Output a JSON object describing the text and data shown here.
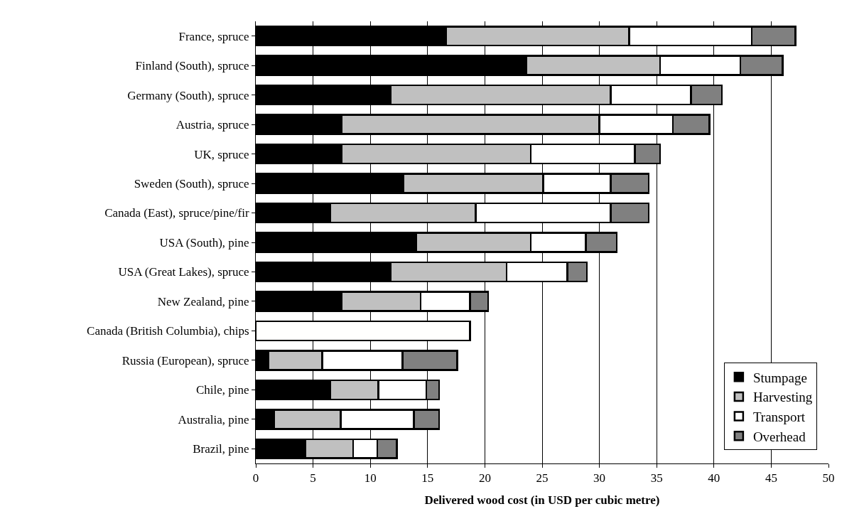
{
  "chart_data": {
    "type": "bar",
    "orientation": "horizontal",
    "stacked": true,
    "xlabel": "Delivered wood cost (in USD per cubic metre)",
    "categories": [
      "France, spruce",
      "Finland (South), spruce",
      "Germany (South), spruce",
      "Austria, spruce",
      "UK, spruce",
      "Sweden (South), spruce",
      "Canada (East), spruce/pine/fir",
      "USA (South), pine",
      "USA (Great Lakes), spruce",
      "New Zealand, pine",
      "Canada (British Columbia), chips",
      "Russia (European), spruce",
      "Chile, pine",
      "Australia, pine",
      "Brazil, pine"
    ],
    "series": [
      {
        "name": "Stumpage",
        "color": "#000000",
        "values": [
          16.6,
          23.6,
          11.8,
          7.5,
          7.5,
          12.9,
          6.5,
          14.0,
          11.8,
          7.5,
          null,
          1.1,
          6.5,
          1.6,
          4.3
        ]
      },
      {
        "name": "Harvesting",
        "color": "#c0c0c0",
        "values": [
          16.0,
          11.7,
          19.2,
          22.5,
          16.5,
          12.2,
          12.7,
          10.0,
          10.1,
          6.9,
          null,
          4.7,
          4.2,
          5.8,
          4.2
        ]
      },
      {
        "name": "Transport",
        "color": "#ffffff",
        "values": [
          10.7,
          7.0,
          7.0,
          6.4,
          9.1,
          5.9,
          11.8,
          4.8,
          5.3,
          4.3,
          null,
          7.0,
          4.2,
          6.4,
          2.1
        ]
      },
      {
        "name": "Overhead",
        "color": "#808080",
        "values": [
          3.8,
          3.7,
          2.7,
          3.2,
          2.2,
          3.3,
          3.3,
          2.7,
          1.7,
          1.6,
          null,
          4.8,
          1.1,
          2.2,
          1.7
        ]
      },
      {
        "color": "#fffffe",
        "values": [
          null,
          null,
          null,
          null,
          null,
          null,
          null,
          null,
          null,
          null,
          18.7,
          null,
          null,
          null,
          null
        ]
      }
    ],
    "xlim": [
      0,
      50
    ],
    "xticks": [
      0,
      5,
      10,
      15,
      20,
      25,
      30,
      35,
      40,
      45,
      50
    ],
    "grid": "x",
    "legend": "bottom right"
  }
}
